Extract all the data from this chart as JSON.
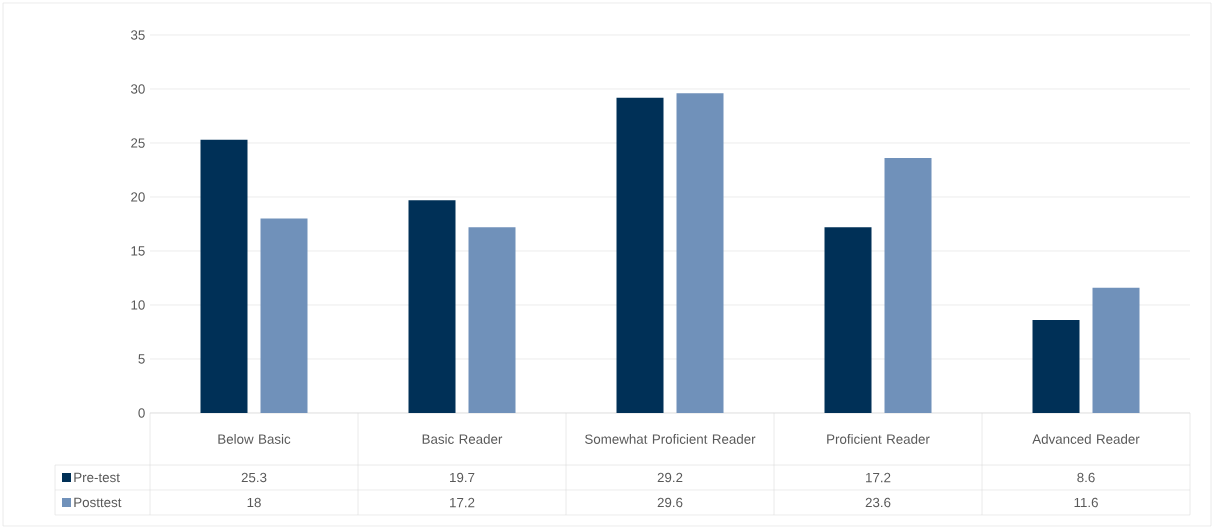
{
  "chart_data": {
    "type": "bar",
    "categories": [
      "Below Basic",
      "Basic Reader",
      "Somewhat Proficient Reader",
      "Proficient Reader",
      "Advanced Reader"
    ],
    "series": [
      {
        "name": "Pre-test",
        "color": "#003057",
        "values": [
          25.3,
          19.7,
          29.2,
          17.2,
          8.6
        ]
      },
      {
        "name": "Posttest",
        "color": "#7091ba",
        "values": [
          18,
          17.2,
          29.6,
          23.6,
          11.6
        ]
      }
    ],
    "ylim": [
      0,
      35
    ],
    "yticks": [
      0,
      5,
      10,
      15,
      20,
      25,
      30,
      35
    ],
    "grid": "y",
    "data_labels": true,
    "legend": "bottom left"
  }
}
